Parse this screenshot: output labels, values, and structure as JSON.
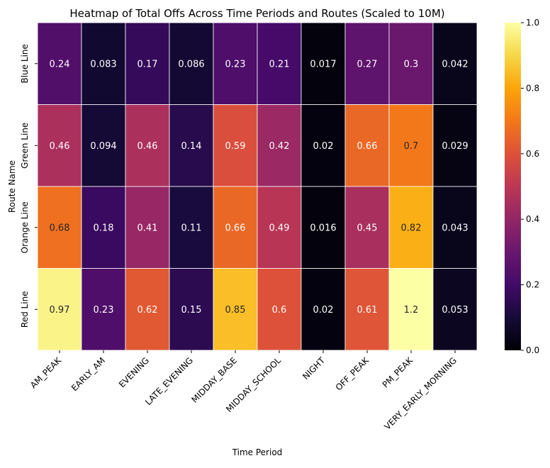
{
  "chart_data": {
    "type": "heatmap",
    "title": "Heatmap of Total Offs Across Time Periods and Routes (Scaled to 10M)",
    "xlabel": "Time Period",
    "ylabel": "Route Name",
    "x_categories": [
      "AM_PEAK",
      "EARLY_AM",
      "EVENING",
      "LATE_EVENING",
      "MIDDAY_BASE",
      "MIDDAY_SCHOOL",
      "NIGHT",
      "OFF_PEAK",
      "PM_PEAK",
      "VERY_EARLY_MORNING"
    ],
    "y_categories": [
      "Blue Line",
      "Green Line",
      "Orange Line",
      "Red Line"
    ],
    "values": [
      [
        0.24,
        0.083,
        0.17,
        0.086,
        0.23,
        0.21,
        0.017,
        0.27,
        0.3,
        0.042
      ],
      [
        0.46,
        0.094,
        0.46,
        0.14,
        0.59,
        0.42,
        0.02,
        0.66,
        0.7,
        0.029
      ],
      [
        0.68,
        0.18,
        0.41,
        0.11,
        0.66,
        0.49,
        0.016,
        0.45,
        0.82,
        0.043
      ],
      [
        0.97,
        0.23,
        0.62,
        0.15,
        0.85,
        0.6,
        0.02,
        0.61,
        1.2,
        0.053
      ]
    ],
    "color_range": [
      0.0,
      1.0
    ],
    "colormap": "inferno",
    "colorbar_ticks": [
      "0.0",
      "0.2",
      "0.4",
      "0.6",
      "0.8",
      "1.0"
    ],
    "annotations": true
  }
}
